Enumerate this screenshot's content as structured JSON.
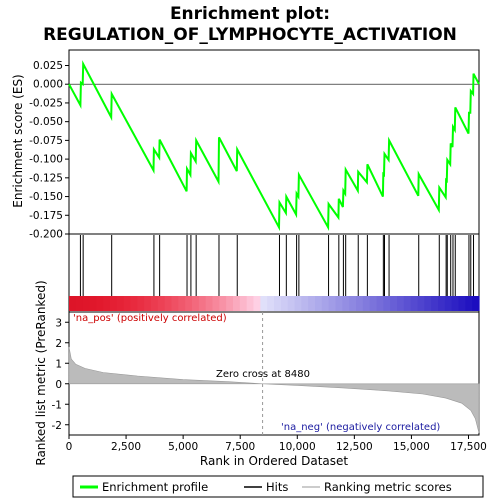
{
  "chart_data": {
    "type": "line",
    "title_line1": "Enrichment plot:",
    "title_line2": "REGULATION_OF_LYMPHOCYTE_ACTIVATION",
    "top_panel": {
      "ylabel": "Enrichment score (ES)",
      "ylim": [
        -0.2,
        0.035
      ],
      "yticks": [
        "0.025",
        "0.000",
        "-0.025",
        "-0.050",
        "-0.075",
        "-0.100",
        "-0.125",
        "-0.150",
        "-0.175",
        "-0.200"
      ],
      "ytick_values": [
        0.025,
        0.0,
        -0.025,
        -0.05,
        -0.075,
        -0.1,
        -0.125,
        -0.15,
        -0.175,
        -0.2
      ],
      "series_name": "Enrichment profile",
      "color": "#00ff00",
      "es_points": [
        [
          0,
          0.0
        ],
        [
          500,
          -0.028
        ],
        [
          520,
          0.002
        ],
        [
          600,
          0.0
        ],
        [
          620,
          0.027
        ],
        [
          1850,
          -0.044
        ],
        [
          1870,
          -0.013
        ],
        [
          3700,
          -0.115
        ],
        [
          3720,
          -0.087
        ],
        [
          3950,
          -0.098
        ],
        [
          3970,
          -0.074
        ],
        [
          5150,
          -0.143
        ],
        [
          5170,
          -0.113
        ],
        [
          5320,
          -0.121
        ],
        [
          5340,
          -0.092
        ],
        [
          5550,
          -0.103
        ],
        [
          5570,
          -0.075
        ],
        [
          6550,
          -0.13
        ],
        [
          6570,
          -0.071
        ],
        [
          7350,
          -0.116
        ],
        [
          7370,
          -0.087
        ],
        [
          9200,
          -0.191
        ],
        [
          9220,
          -0.158
        ],
        [
          9500,
          -0.172
        ],
        [
          9520,
          -0.15
        ],
        [
          9950,
          -0.174
        ],
        [
          9970,
          -0.146
        ],
        [
          10050,
          -0.15
        ],
        [
          10070,
          -0.121
        ],
        [
          11350,
          -0.191
        ],
        [
          11370,
          -0.16
        ],
        [
          11800,
          -0.178
        ],
        [
          11820,
          -0.153
        ],
        [
          12000,
          -0.164
        ],
        [
          12020,
          -0.142
        ],
        [
          12100,
          -0.146
        ],
        [
          12120,
          -0.114
        ],
        [
          12650,
          -0.142
        ],
        [
          12670,
          -0.117
        ],
        [
          13050,
          -0.131
        ],
        [
          13070,
          -0.107
        ],
        [
          13750,
          -0.15
        ],
        [
          13770,
          -0.12
        ],
        [
          13800,
          -0.121
        ],
        [
          13820,
          -0.093
        ],
        [
          14000,
          -0.101
        ],
        [
          14020,
          -0.075
        ],
        [
          15300,
          -0.149
        ],
        [
          15320,
          -0.12
        ],
        [
          16200,
          -0.168
        ],
        [
          16220,
          -0.138
        ],
        [
          16500,
          -0.151
        ],
        [
          16520,
          -0.128
        ],
        [
          16550,
          -0.129
        ],
        [
          16570,
          -0.101
        ],
        [
          16700,
          -0.107
        ],
        [
          16720,
          -0.079
        ],
        [
          16800,
          -0.084
        ],
        [
          16820,
          -0.057
        ],
        [
          16900,
          -0.061
        ],
        [
          16920,
          -0.031
        ],
        [
          17500,
          -0.066
        ],
        [
          17520,
          -0.038
        ],
        [
          17580,
          -0.038
        ],
        [
          17600,
          -0.009
        ],
        [
          17700,
          -0.013
        ],
        [
          17720,
          0.014
        ],
        [
          17960,
          0.0
        ]
      ]
    },
    "hits_panel": {
      "series_name": "Hits",
      "hit_positions": [
        500,
        620,
        1870,
        3720,
        3970,
        5170,
        5340,
        5570,
        6570,
        7370,
        9220,
        9520,
        9970,
        10070,
        11370,
        11820,
        12020,
        12120,
        12670,
        13070,
        13770,
        13820,
        14020,
        15320,
        16220,
        16520,
        16570,
        16720,
        16820,
        16920,
        17520,
        17600,
        17720
      ]
    },
    "rank_panel": {
      "ylabel": "Ranked list metric (PreRanked)",
      "xlabel": "Rank in Ordered Dataset",
      "ylim": [
        -2.5,
        3.5
      ],
      "yticks": [
        "3",
        "2",
        "1",
        "0",
        "-1",
        "-2"
      ],
      "ytick_values": [
        3,
        2,
        1,
        0,
        -1,
        -2
      ],
      "series_name": "Ranking metric scores",
      "metric_curve": [
        [
          0,
          1.8
        ],
        [
          100,
          1.2
        ],
        [
          300,
          0.95
        ],
        [
          700,
          0.75
        ],
        [
          1500,
          0.55
        ],
        [
          3000,
          0.38
        ],
        [
          5000,
          0.2
        ],
        [
          7000,
          0.1
        ],
        [
          8480,
          0.0
        ],
        [
          10000,
          -0.08
        ],
        [
          12000,
          -0.2
        ],
        [
          14000,
          -0.35
        ],
        [
          15500,
          -0.5
        ],
        [
          16500,
          -0.7
        ],
        [
          17200,
          -0.95
        ],
        [
          17600,
          -1.3
        ],
        [
          17800,
          -1.7
        ],
        [
          17960,
          -2.4
        ]
      ],
      "zero_cross_label": "Zero cross at 8480",
      "pos_label": "'na_pos' (positively correlated)",
      "neg_label": "'na_neg' (negatively correlated)"
    },
    "xlim": [
      0,
      17960
    ],
    "xticks": [
      "0",
      "2,500",
      "5,000",
      "7,500",
      "10,000",
      "12,500",
      "15,000",
      "17,500"
    ],
    "xtick_values": [
      0,
      2500,
      5000,
      7500,
      10000,
      12500,
      15000,
      17500
    ],
    "zero_cross": 8480,
    "colors": {
      "es": "#00ff00",
      "pos": "#e8141e",
      "neg": "#3a1fd0",
      "metric": "#bbbbbb"
    }
  },
  "legend": {
    "items": [
      {
        "label": "Enrichment profile",
        "color": "#00ff00"
      },
      {
        "label": "Hits",
        "color": "#000000"
      },
      {
        "label": "Ranking metric scores",
        "color": "#bbbbbb"
      }
    ]
  }
}
